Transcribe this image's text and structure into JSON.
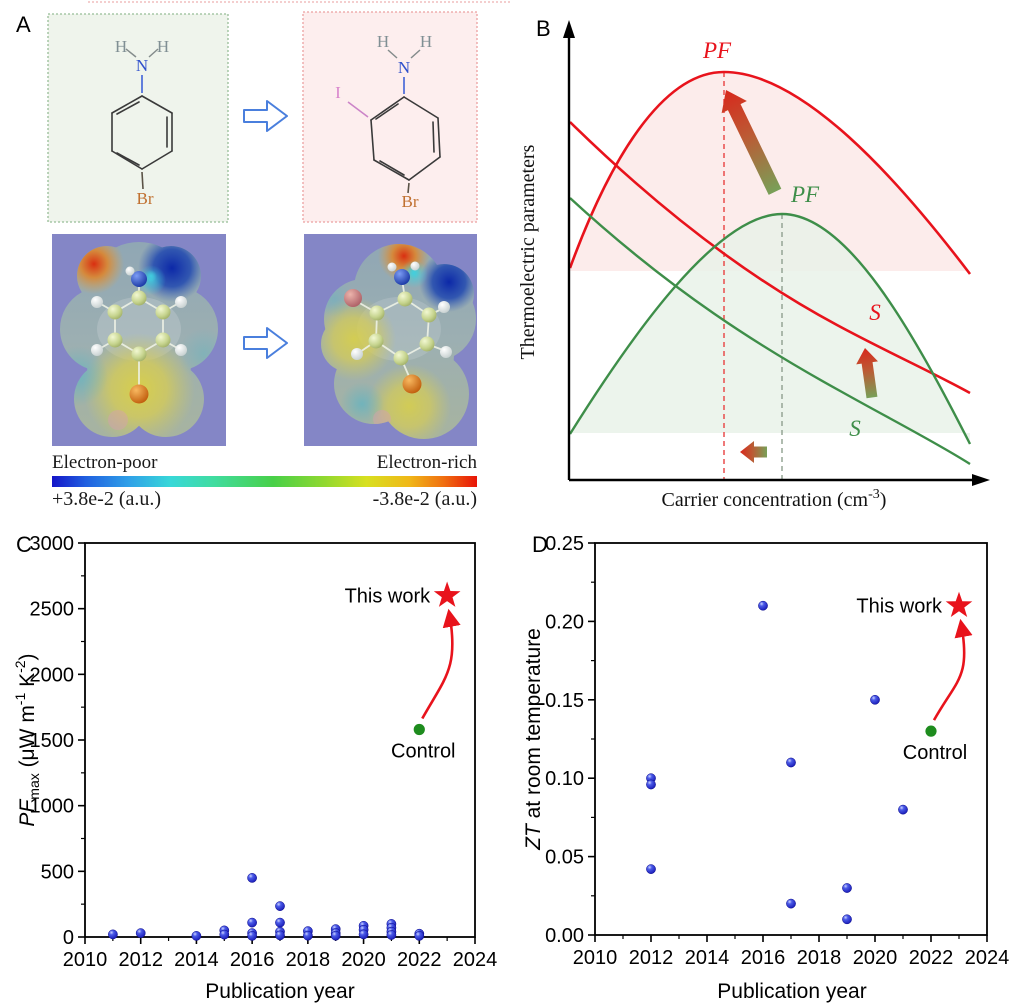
{
  "panel_a": {
    "label": "A",
    "reactant_molecule": {
      "h_left": "H",
      "h_right": "H",
      "n": "N",
      "br": "Br"
    },
    "product_molecule": {
      "h_left": "H",
      "h_right": "H",
      "n": "N",
      "i": "I",
      "br": "Br"
    },
    "colorbar": {
      "left_label": "Electron-poor",
      "right_label": "Electron-rich",
      "left_value": "+3.8e-2 (a.u.)",
      "right_value": "-3.8e-2 (a.u.)"
    }
  },
  "panel_b": {
    "label": "B",
    "ylabel": "Thermoelectric parameters",
    "xlabel_main": "Carrier concentration (cm",
    "xlabel_sup": "-3",
    "xlabel_close": ")",
    "pf_red_label": "PF",
    "pf_green_label": "PF",
    "s_red_label": "S",
    "s_green_label": "S"
  },
  "panel_c": {
    "label": "C",
    "xlabel": "Publication year",
    "ylabel_parts": {
      "pf": "PF",
      "max": "max",
      "mid": " (μW m",
      "sup1": "-1",
      "k": " K",
      "sup2": "-2",
      "close": ")"
    }
  },
  "panel_d": {
    "label": "D",
    "xlabel": "Publication year",
    "ylabel_it": "ZT",
    "ylabel_rest": " at room temperature"
  },
  "colors": {
    "red": "#e8131c",
    "green_curve": "#3e8e49",
    "blue_dot": "#1c1ccc",
    "control_green": "#1e8c1e",
    "star_red": "#e8131c",
    "esp_background": "#8486c6"
  },
  "chart_data": [
    {
      "id": "panel-b-schematic",
      "type": "line",
      "title": "",
      "xlabel": "Carrier concentration (cm-3)",
      "ylabel": "Thermoelectric parameters",
      "legend_position": "none",
      "grid": false,
      "series": [
        {
          "name": "PF (iodinated, red)",
          "color": "#e8131c",
          "shape": "bell curve, higher maximum, peak at lower carrier concentration"
        },
        {
          "name": "PF (control, green)",
          "color": "#3e8e49",
          "shape": "bell curve, lower maximum, peak at higher carrier concentration"
        },
        {
          "name": "S (red)",
          "color": "#e8131c",
          "shape": "monotonically decreasing, higher values"
        },
        {
          "name": "S (green)",
          "color": "#3e8e49",
          "shape": "monotonically decreasing, lower values"
        }
      ],
      "annotations": [
        "PF",
        "PF",
        "S",
        "S",
        "dashed guide at red PF peak",
        "dashed guide at green PF peak",
        "gradient arrows green to red indicating improvement"
      ]
    },
    {
      "id": "panel-c-scatter",
      "type": "scatter",
      "title": "",
      "xlabel": "Publication year",
      "ylabel": "PFmax (uW m-1 K-2)",
      "xlim": [
        2010,
        2024
      ],
      "ylim": [
        0,
        3000
      ],
      "grid": false,
      "xticks": [
        {
          "v": 2010,
          "label": "2010"
        },
        {
          "v": 2012,
          "label": "2012"
        },
        {
          "v": 2014,
          "label": "2014"
        },
        {
          "v": 2016,
          "label": "2016"
        },
        {
          "v": 2018,
          "label": "2018"
        },
        {
          "v": 2020,
          "label": "2020"
        },
        {
          "v": 2022,
          "label": "2022"
        },
        {
          "v": 2024,
          "label": "2024"
        }
      ],
      "yticks": [
        {
          "v": 0,
          "label": "0"
        },
        {
          "v": 500,
          "label": "500"
        },
        {
          "v": 1000,
          "label": "1000"
        },
        {
          "v": 1500,
          "label": "1500"
        },
        {
          "v": 2000,
          "label": "2000"
        },
        {
          "v": 2500,
          "label": "2500"
        },
        {
          "v": 3000,
          "label": "3000"
        }
      ],
      "x_minor_step": 1,
      "y_minor_step": 250,
      "points": [
        [
          2011,
          20
        ],
        [
          2012,
          30
        ],
        [
          2014,
          8
        ],
        [
          2015,
          50
        ],
        [
          2015,
          18
        ],
        [
          2016,
          450
        ],
        [
          2016,
          110
        ],
        [
          2016,
          30
        ],
        [
          2016,
          8
        ],
        [
          2017,
          235
        ],
        [
          2017,
          110
        ],
        [
          2017,
          40
        ],
        [
          2017,
          12
        ],
        [
          2018,
          45
        ],
        [
          2018,
          10
        ],
        [
          2019,
          60
        ],
        [
          2019,
          30
        ],
        [
          2019,
          10
        ],
        [
          2020,
          85
        ],
        [
          2020,
          55
        ],
        [
          2020,
          20
        ],
        [
          2021,
          100
        ],
        [
          2021,
          70
        ],
        [
          2021,
          40
        ],
        [
          2021,
          15
        ],
        [
          2022,
          25
        ],
        [
          2022,
          8
        ]
      ],
      "control": {
        "x": 2022,
        "y": 1580,
        "label": "Control"
      },
      "this_work": {
        "x": 2023,
        "y": 2600,
        "label": "This work"
      }
    },
    {
      "id": "panel-d-scatter",
      "type": "scatter",
      "title": "",
      "xlabel": "Publication year",
      "ylabel": "ZT at room temperature",
      "xlim": [
        2010,
        2024
      ],
      "ylim": [
        0,
        0.25
      ],
      "grid": false,
      "xticks": [
        {
          "v": 2010,
          "label": "2010"
        },
        {
          "v": 2012,
          "label": "2012"
        },
        {
          "v": 2014,
          "label": "2014"
        },
        {
          "v": 2016,
          "label": "2016"
        },
        {
          "v": 2018,
          "label": "2018"
        },
        {
          "v": 2020,
          "label": "2020"
        },
        {
          "v": 2022,
          "label": "2022"
        },
        {
          "v": 2024,
          "label": "2024"
        }
      ],
      "yticks": [
        {
          "v": 0,
          "label": "0.00"
        },
        {
          "v": 0.05,
          "label": "0.05"
        },
        {
          "v": 0.1,
          "label": "0.10"
        },
        {
          "v": 0.15,
          "label": "0.15"
        },
        {
          "v": 0.2,
          "label": "0.20"
        },
        {
          "v": 0.25,
          "label": "0.25"
        }
      ],
      "x_minor_step": 1,
      "y_minor_step": 0.025,
      "points": [
        [
          2012,
          0.1
        ],
        [
          2012,
          0.096
        ],
        [
          2012,
          0.042
        ],
        [
          2016,
          0.21
        ],
        [
          2017,
          0.11
        ],
        [
          2017,
          0.02
        ],
        [
          2019,
          0.03
        ],
        [
          2019,
          0.01
        ],
        [
          2020,
          0.15
        ],
        [
          2021,
          0.08
        ]
      ],
      "control": {
        "x": 2022,
        "y": 0.13,
        "label": "Control"
      },
      "this_work": {
        "x": 2023,
        "y": 0.21,
        "label": "This work"
      }
    }
  ]
}
